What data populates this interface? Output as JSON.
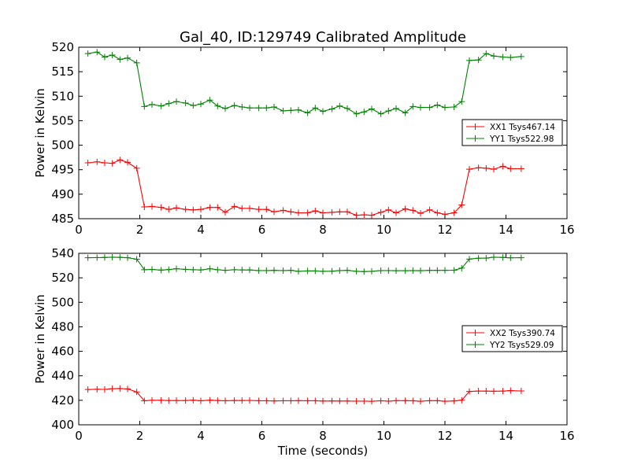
{
  "figure": {
    "title": "Gal_40, ID:129749 Calibrated Amplitude",
    "xlabel": "Time (seconds)"
  },
  "chart_data": [
    {
      "type": "line",
      "ylabel": "Power in Kelvin",
      "xlim": [
        0,
        16
      ],
      "ylim": [
        485,
        520
      ],
      "xticks": [
        0,
        2,
        4,
        6,
        8,
        10,
        12,
        14,
        16
      ],
      "yticks": [
        485,
        490,
        495,
        500,
        505,
        510,
        515,
        520
      ],
      "legend": "center-right",
      "grid": false,
      "x": [
        0.3,
        0.6,
        0.85,
        1.1,
        1.35,
        1.6,
        1.9,
        2.15,
        2.4,
        2.7,
        2.95,
        3.2,
        3.5,
        3.75,
        4.0,
        4.3,
        4.55,
        4.8,
        5.1,
        5.35,
        5.6,
        5.9,
        6.15,
        6.4,
        6.7,
        6.95,
        7.2,
        7.5,
        7.75,
        8.0,
        8.3,
        8.55,
        8.8,
        9.1,
        9.35,
        9.6,
        9.9,
        10.15,
        10.4,
        10.7,
        10.95,
        11.2,
        11.5,
        11.75,
        12.0,
        12.3,
        12.55,
        12.8,
        13.1,
        13.35,
        13.6,
        13.9,
        14.15,
        14.5
      ],
      "series": [
        {
          "name": "XX1 Tsys467.14",
          "color": "#ff0000",
          "values": [
            496.4,
            496.6,
            496.4,
            496.3,
            497.0,
            496.5,
            495.3,
            487.4,
            487.5,
            487.3,
            486.9,
            487.2,
            486.9,
            486.8,
            486.9,
            487.3,
            487.3,
            486.3,
            487.5,
            487.1,
            487.1,
            486.9,
            486.9,
            486.4,
            486.7,
            486.4,
            486.2,
            486.2,
            486.6,
            486.2,
            486.3,
            486.4,
            486.4,
            485.7,
            485.8,
            485.7,
            486.3,
            486.8,
            486.2,
            487.0,
            486.7,
            486.1,
            486.8,
            486.2,
            485.9,
            486.2,
            487.8,
            495.1,
            495.4,
            495.3,
            495.1,
            495.7,
            495.2,
            495.2
          ]
        },
        {
          "name": "YY1 Tsys522.98",
          "color": "#008000",
          "values": [
            518.7,
            519.0,
            518.0,
            518.4,
            517.5,
            517.8,
            516.8,
            507.9,
            508.3,
            508.0,
            508.5,
            508.9,
            508.6,
            508.1,
            508.4,
            509.2,
            508.0,
            507.5,
            508.1,
            507.8,
            507.6,
            507.6,
            507.6,
            507.8,
            507.0,
            507.1,
            507.2,
            506.6,
            507.6,
            506.9,
            507.4,
            508.0,
            507.5,
            506.4,
            506.8,
            507.4,
            506.4,
            507.0,
            507.5,
            506.6,
            507.9,
            507.7,
            507.7,
            508.2,
            507.7,
            507.8,
            508.9,
            517.3,
            517.4,
            518.7,
            518.2,
            518.0,
            517.9,
            518.1
          ]
        }
      ]
    },
    {
      "type": "line",
      "ylabel": "Power in Kelvin",
      "xlim": [
        0,
        16
      ],
      "ylim": [
        400,
        540
      ],
      "xticks": [
        0,
        2,
        4,
        6,
        8,
        10,
        12,
        14,
        16
      ],
      "yticks": [
        400,
        420,
        440,
        460,
        480,
        500,
        520,
        540
      ],
      "legend": "center-right",
      "grid": false,
      "x": [
        0.3,
        0.6,
        0.85,
        1.1,
        1.35,
        1.6,
        1.9,
        2.15,
        2.4,
        2.7,
        2.95,
        3.2,
        3.5,
        3.75,
        4.0,
        4.3,
        4.55,
        4.8,
        5.1,
        5.35,
        5.6,
        5.9,
        6.15,
        6.4,
        6.7,
        6.95,
        7.2,
        7.5,
        7.75,
        8.0,
        8.3,
        8.55,
        8.8,
        9.1,
        9.35,
        9.6,
        9.9,
        10.15,
        10.4,
        10.7,
        10.95,
        11.2,
        11.5,
        11.75,
        12.0,
        12.3,
        12.55,
        12.8,
        13.1,
        13.35,
        13.6,
        13.9,
        14.15,
        14.5
      ],
      "series": [
        {
          "name": "XX2 Tsys390.74",
          "color": "#ff0000",
          "values": [
            428.8,
            429.0,
            428.9,
            429.5,
            429.6,
            429.3,
            426.8,
            419.6,
            420.0,
            420.0,
            419.8,
            419.8,
            419.8,
            420.1,
            419.6,
            420.1,
            419.8,
            419.6,
            419.8,
            419.8,
            419.9,
            419.6,
            419.6,
            419.5,
            419.6,
            419.6,
            419.7,
            419.6,
            419.6,
            419.4,
            419.5,
            419.4,
            419.4,
            419.3,
            419.3,
            419.2,
            419.6,
            419.3,
            419.7,
            419.7,
            419.6,
            419.2,
            419.7,
            419.7,
            419.2,
            419.5,
            420.1,
            427.2,
            427.6,
            427.5,
            427.4,
            427.5,
            427.9,
            427.6
          ]
        },
        {
          "name": "YY2 Tsys529.09",
          "color": "#008000",
          "values": [
            536.4,
            536.5,
            536.6,
            536.8,
            536.7,
            536.4,
            535.2,
            526.6,
            526.8,
            526.3,
            526.7,
            527.4,
            526.9,
            526.6,
            526.4,
            527.4,
            526.6,
            526.1,
            526.6,
            526.4,
            526.4,
            525.9,
            525.9,
            526.1,
            525.9,
            526.1,
            525.3,
            525.6,
            525.6,
            525.3,
            525.4,
            525.9,
            526.1,
            525.3,
            525.1,
            525.3,
            525.9,
            525.9,
            525.8,
            525.8,
            525.9,
            525.8,
            526.1,
            526.1,
            526.1,
            526.2,
            527.9,
            535.3,
            536.0,
            536.1,
            536.8,
            536.6,
            536.3,
            536.4
          ]
        }
      ]
    }
  ]
}
